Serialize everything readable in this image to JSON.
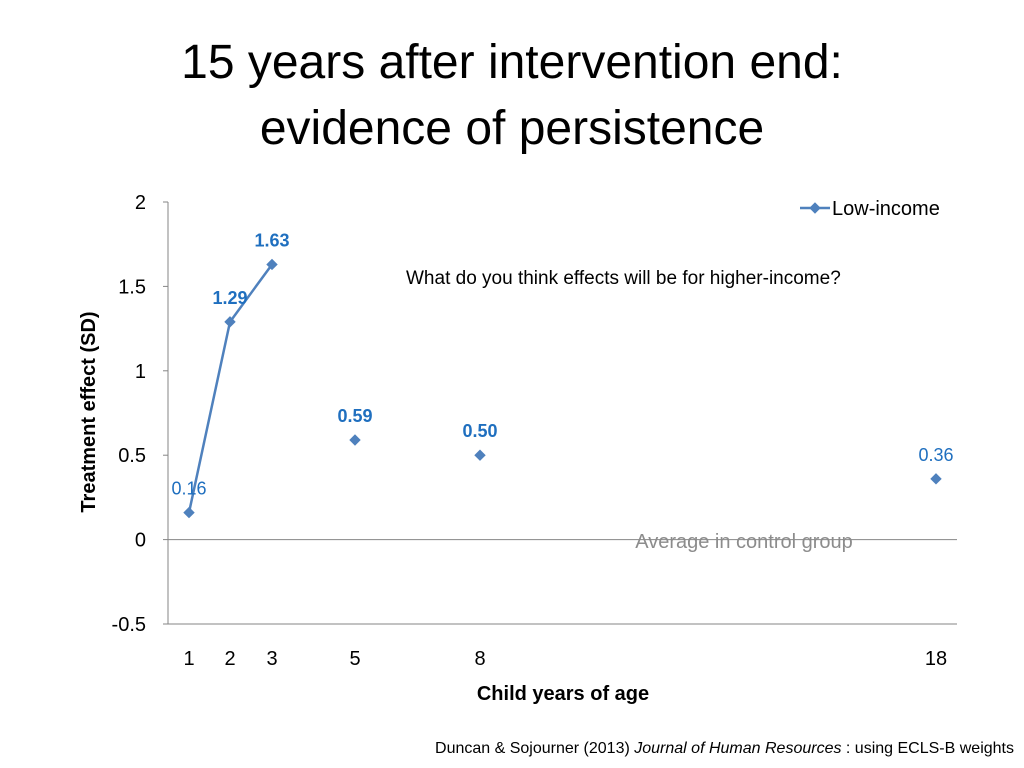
{
  "slide": {
    "title_line1": "15 years after intervention end:",
    "title_line2": "evidence of persistence",
    "citation_prefix": "Duncan & Sojourner (2013) ",
    "citation_journal": "Journal of Human Resources",
    "citation_suffix": " : using ECLS-B weights"
  },
  "colors": {
    "series": "#4F81BD",
    "label_blue": "#1F6FBF",
    "axis": "#868686",
    "annotation_gray": "#8C8C8C",
    "text": "#000000"
  },
  "chart_data": {
    "type": "line",
    "title": "",
    "xlabel": "Child years of age",
    "ylabel": "Treatment effect (SD)",
    "ylim": [
      -0.5,
      2
    ],
    "y_ticks": [
      {
        "value": -0.5,
        "label": "-0.5"
      },
      {
        "value": 0,
        "label": "0"
      },
      {
        "value": 0.5,
        "label": "0.5"
      },
      {
        "value": 1,
        "label": "1"
      },
      {
        "value": 1.5,
        "label": "1.5"
      },
      {
        "value": 2,
        "label": "2"
      }
    ],
    "x_ticks": [
      {
        "value": 1,
        "label": "1"
      },
      {
        "value": 2,
        "label": "2"
      },
      {
        "value": 3,
        "label": "3"
      },
      {
        "value": 5,
        "label": "5"
      },
      {
        "value": 8,
        "label": "8"
      },
      {
        "value": 18,
        "label": "18"
      }
    ],
    "legend": {
      "position": "top-right",
      "label": "Low-income"
    },
    "series": [
      {
        "name": "Low-income",
        "points": [
          {
            "x": 1,
            "y": 0.16,
            "label": "0.16",
            "bold": false,
            "connected": true
          },
          {
            "x": 2,
            "y": 1.29,
            "label": "1.29",
            "bold": true,
            "connected": true
          },
          {
            "x": 3,
            "y": 1.63,
            "label": "1.63",
            "bold": true,
            "connected": true
          },
          {
            "x": 5,
            "y": 0.59,
            "label": "0.59",
            "bold": true,
            "connected": false
          },
          {
            "x": 8,
            "y": 0.5,
            "label": "0.50",
            "bold": true,
            "connected": false
          },
          {
            "x": 18,
            "y": 0.36,
            "label": "0.36",
            "bold": false,
            "connected": false
          }
        ]
      }
    ],
    "annotations": {
      "question": "What do you think effects will be for higher-income?",
      "control_line_label": "Average in control group"
    }
  }
}
